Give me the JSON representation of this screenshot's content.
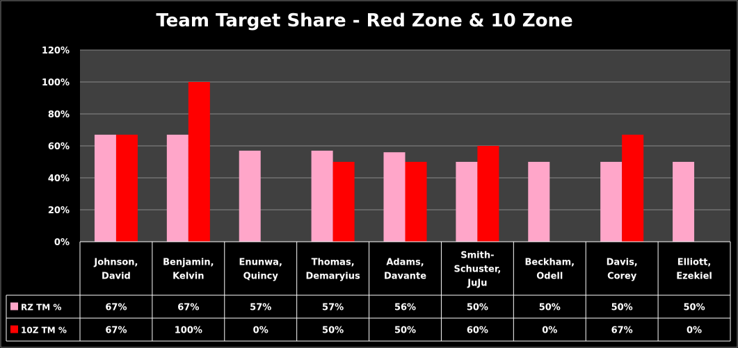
{
  "chart_data": {
    "type": "bar",
    "title": "Team Target Share - Red Zone & 10 Zone",
    "categories": [
      [
        "Johnson,",
        "David"
      ],
      [
        "Benjamin,",
        "Kelvin"
      ],
      [
        "Enunwa,",
        "Quincy"
      ],
      [
        "Thomas,",
        "Demaryius"
      ],
      [
        "Adams,",
        "Davante"
      ],
      [
        "Smith-",
        "Schuster,",
        "JuJu"
      ],
      [
        "Beckham,",
        "Odell"
      ],
      [
        "Davis,",
        "Corey"
      ],
      [
        "Elliott,",
        "Ezekiel"
      ]
    ],
    "series": [
      {
        "name": "RZ TM %",
        "color": "#ffa6c9",
        "values": [
          67,
          67,
          57,
          57,
          56,
          50,
          50,
          50,
          50
        ],
        "labels": [
          "67%",
          "67%",
          "57%",
          "57%",
          "56%",
          "50%",
          "50%",
          "50%",
          "50%"
        ]
      },
      {
        "name": "10Z TM %",
        "color": "#ff0000",
        "values": [
          67,
          100,
          0,
          50,
          50,
          60,
          0,
          67,
          0
        ],
        "labels": [
          "67%",
          "100%",
          "0%",
          "50%",
          "50%",
          "60%",
          "0%",
          "67%",
          "0%"
        ]
      }
    ],
    "yticks": [
      "0%",
      "20%",
      "40%",
      "60%",
      "80%",
      "100%",
      "120%"
    ],
    "ylim": [
      0,
      120
    ],
    "grid": true,
    "legend": "data-table"
  }
}
